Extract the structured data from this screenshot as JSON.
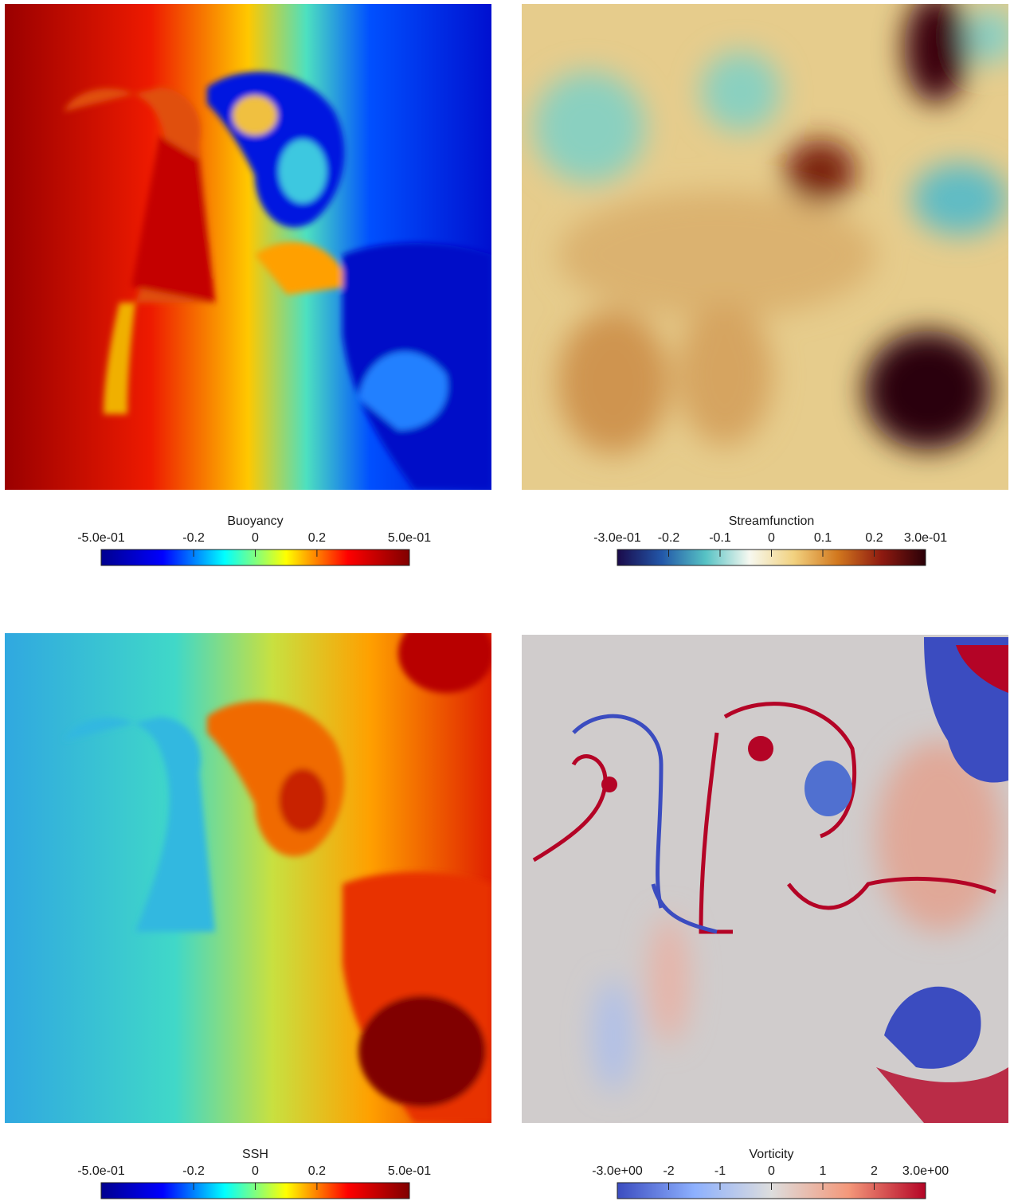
{
  "panels": [
    {
      "title": "Buoyancy",
      "range": [
        -0.5,
        0.5
      ],
      "ticks": [
        {
          "value": -0.5,
          "label": "-5.0e-01"
        },
        -0.2,
        0,
        0.2,
        {
          "value": 0.5,
          "label": "5.0e-01"
        }
      ],
      "colors": [
        "#00008f",
        "#0000ff",
        "#00ffff",
        "#ffff00",
        "#ff0000",
        "#800000"
      ]
    },
    {
      "title": "Streamfunction",
      "range": [
        -0.3,
        0.3
      ],
      "ticks": [
        {
          "value": -0.3,
          "label": "-3.0e-01"
        },
        -0.2,
        -0.1,
        0,
        0.1,
        0.2,
        {
          "value": 0.3,
          "label": "3.0e-01"
        }
      ],
      "colors": [
        "#1a0a4a",
        "#2256a8",
        "#56c2c4",
        "#f6f8f0",
        "#f2d280",
        "#d2781e",
        "#8e1a10",
        "#2a0008"
      ]
    },
    {
      "title": "SSH",
      "range": [
        -0.5,
        0.5
      ],
      "ticks": [
        {
          "value": -0.5,
          "label": "-5.0e-01"
        },
        -0.2,
        0,
        0.2,
        {
          "value": 0.5,
          "label": "5.0e-01"
        }
      ],
      "colors": [
        "#00008f",
        "#0000ff",
        "#00ffff",
        "#ffff00",
        "#ff0000",
        "#800000"
      ]
    },
    {
      "title": "Vorticity",
      "range": [
        -3,
        3
      ],
      "ticks": [
        {
          "value": -3,
          "label": "-3.0e+00"
        },
        -2,
        -1,
        0,
        1,
        2,
        {
          "value": 3,
          "label": "3.0e+00"
        }
      ],
      "colors": [
        "#3b4cc0",
        "#8db0fe",
        "#dddddd",
        "#f4987a",
        "#b40426"
      ]
    }
  ]
}
